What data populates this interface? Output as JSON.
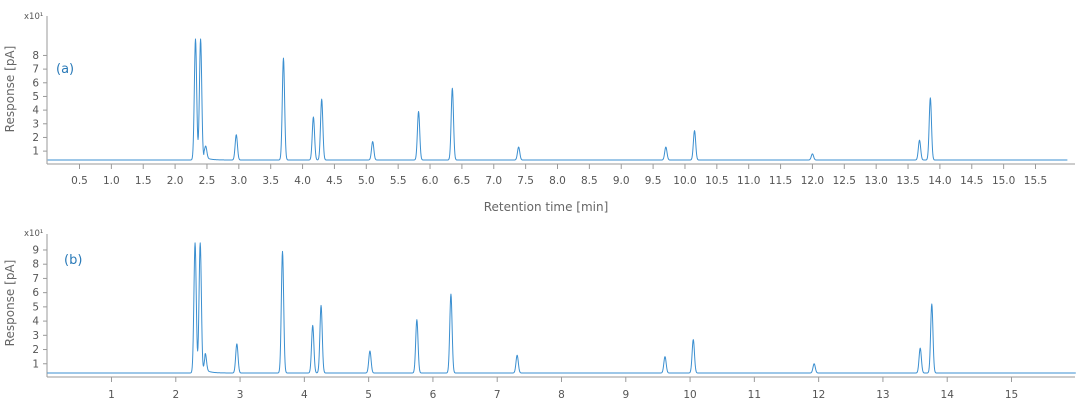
{
  "colors": {
    "trace": "#3b8fd0",
    "axis": "#9a9a9a",
    "label": "#2a7ab8"
  },
  "chart_data": [
    {
      "type": "line",
      "panel_label": "(a)",
      "ylabel": "Response [pA]",
      "y_exponent": "x10¹",
      "xlabel": "Retention time [min]",
      "xlim": [
        0,
        16.0
      ],
      "ylim": [
        0,
        9.2
      ],
      "y_ticks": [
        1,
        2,
        3,
        4,
        5,
        6,
        7,
        8
      ],
      "x_ticks": [
        0.5,
        1.0,
        1.5,
        2.0,
        2.5,
        3.0,
        3.5,
        4.0,
        4.5,
        5.0,
        5.5,
        6.0,
        6.5,
        7.0,
        7.5,
        8.0,
        8.5,
        9.0,
        9.5,
        10.0,
        10.5,
        11.0,
        11.5,
        12.0,
        12.5,
        13.0,
        13.5,
        14.0,
        14.5,
        15.0,
        15.5
      ],
      "x_tick_labels": [
        "0.5",
        "1.0",
        "1.5",
        "2.0",
        "2.5",
        "3.0",
        "3.5",
        "4.0",
        "4.5",
        "5.0",
        "5.5",
        "6.0",
        "6.5",
        "7.0",
        "7.5",
        "8.0",
        "8.5",
        "9.0",
        "9.5",
        "10.0",
        "10.5",
        "11.0",
        "11.5",
        "12.0",
        "12.5",
        "13.0",
        "13.5",
        "14.0",
        "14.5",
        "15.0",
        "15.5"
      ],
      "baseline": 0.35,
      "peaks": [
        {
          "rt": 2.32,
          "height": 9.2
        },
        {
          "rt": 2.4,
          "height": 9.2
        },
        {
          "rt": 2.48,
          "height": 1.2
        },
        {
          "rt": 2.96,
          "height": 2.2
        },
        {
          "rt": 3.7,
          "height": 7.8
        },
        {
          "rt": 4.17,
          "height": 3.5
        },
        {
          "rt": 4.3,
          "height": 4.8
        },
        {
          "rt": 5.1,
          "height": 1.7
        },
        {
          "rt": 5.82,
          "height": 3.9
        },
        {
          "rt": 6.35,
          "height": 5.6
        },
        {
          "rt": 7.39,
          "height": 1.3
        },
        {
          "rt": 9.7,
          "height": 1.3
        },
        {
          "rt": 10.15,
          "height": 2.5
        },
        {
          "rt": 12.0,
          "height": 0.8
        },
        {
          "rt": 13.68,
          "height": 1.8
        },
        {
          "rt": 13.85,
          "height": 4.9
        }
      ]
    },
    {
      "type": "line",
      "panel_label": "(b)",
      "ylabel": "Response [pA]",
      "y_exponent": "x10¹",
      "xlabel": "",
      "xlim": [
        0,
        16.0
      ],
      "ylim": [
        0,
        9.5
      ],
      "y_ticks": [
        1,
        2,
        3,
        4,
        5,
        6,
        7,
        8,
        9
      ],
      "x_ticks": [
        1,
        2,
        3,
        4,
        5,
        6,
        7,
        8,
        9,
        10,
        11,
        12,
        13,
        14,
        15
      ],
      "x_tick_labels": [
        "1",
        "2",
        "3",
        "4",
        "5",
        "6",
        "7",
        "8",
        "9",
        "10",
        "11",
        "12",
        "13",
        "14",
        "15"
      ],
      "baseline": 0.35,
      "peaks": [
        {
          "rt": 2.3,
          "height": 9.5
        },
        {
          "rt": 2.38,
          "height": 9.5
        },
        {
          "rt": 2.46,
          "height": 1.5
        },
        {
          "rt": 2.95,
          "height": 2.4
        },
        {
          "rt": 3.66,
          "height": 8.9
        },
        {
          "rt": 4.13,
          "height": 3.7
        },
        {
          "rt": 4.26,
          "height": 5.1
        },
        {
          "rt": 5.02,
          "height": 1.9
        },
        {
          "rt": 5.75,
          "height": 4.1
        },
        {
          "rt": 6.28,
          "height": 5.9
        },
        {
          "rt": 7.31,
          "height": 1.6
        },
        {
          "rt": 9.61,
          "height": 1.5
        },
        {
          "rt": 10.05,
          "height": 2.7
        },
        {
          "rt": 11.93,
          "height": 1.0
        },
        {
          "rt": 13.58,
          "height": 2.1
        },
        {
          "rt": 13.76,
          "height": 5.2
        }
      ]
    }
  ]
}
